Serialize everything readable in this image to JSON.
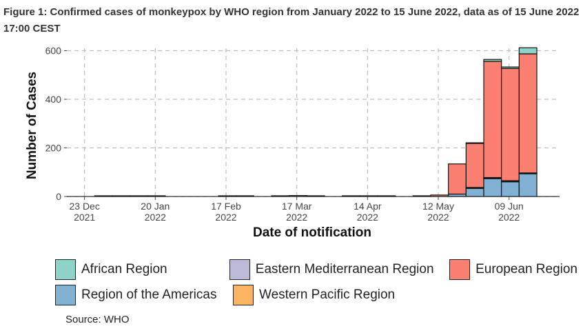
{
  "title": "Figure 1: Confirmed cases of monkeypox by WHO region from January 2022 to 15 June 2022, data as of 15 June 2022 17:00 CEST",
  "source": "Source: WHO",
  "chart_data": {
    "type": "bar",
    "stacked": true,
    "xlabel": "Date of notification",
    "ylabel": "Number of Cases",
    "ylim": [
      0,
      610
    ],
    "yticks": [
      0,
      200,
      400,
      600
    ],
    "xticks": [
      {
        "date": "2021-12-23",
        "line1": "23 Dec",
        "line2": "2021"
      },
      {
        "date": "2022-01-20",
        "line1": "20 Jan",
        "line2": "2022"
      },
      {
        "date": "2022-02-17",
        "line1": "17 Feb",
        "line2": "2022"
      },
      {
        "date": "2022-03-17",
        "line1": "17 Mar",
        "line2": "2022"
      },
      {
        "date": "2022-04-14",
        "line1": "14 Apr",
        "line2": "2022"
      },
      {
        "date": "2022-05-12",
        "line1": "12 May",
        "line2": "2022"
      },
      {
        "date": "2022-06-09",
        "line1": "09 Jun",
        "line2": "2022"
      }
    ],
    "x_range": [
      "2021-12-16",
      "2022-06-29"
    ],
    "bar_interval": "week",
    "grid": true,
    "legend_position": "bottom",
    "weeks": [
      "2021-12-27",
      "2022-01-03",
      "2022-01-10",
      "2022-01-17",
      "2022-02-14",
      "2022-02-21",
      "2022-03-07",
      "2022-03-14",
      "2022-03-21",
      "2022-04-04",
      "2022-04-11",
      "2022-04-18",
      "2022-05-02",
      "2022-05-09",
      "2022-05-16",
      "2022-05-23",
      "2022-05-30",
      "2022-06-06",
      "2022-06-13"
    ],
    "series": [
      {
        "name": "Region of the Americas",
        "color": "#80b1d3",
        "values": [
          0,
          0,
          0,
          0,
          0,
          0,
          0,
          0,
          0,
          0,
          0,
          0,
          0,
          0,
          10,
          35,
          75,
          62,
          95
        ]
      },
      {
        "name": "Western Pacific Region",
        "color": "#fdb462",
        "values": [
          0,
          0,
          0,
          0,
          0,
          0,
          0,
          0,
          0,
          0,
          0,
          0,
          0,
          0,
          0,
          1,
          1,
          1,
          1
        ]
      },
      {
        "name": "Eastern Mediterranean Region",
        "color": "#bebada",
        "values": [
          0,
          0,
          0,
          0,
          0,
          0,
          0,
          0,
          0,
          0,
          0,
          0,
          0,
          0,
          0,
          1,
          2,
          2,
          1
        ]
      },
      {
        "name": "European Region",
        "color": "#fb8072",
        "values": [
          3,
          3,
          3,
          3,
          3,
          3,
          3,
          4,
          3,
          3,
          3,
          3,
          3,
          6,
          124,
          182,
          478,
          462,
          490
        ]
      },
      {
        "name": "African Region",
        "color": "#8dd3c7",
        "values": [
          0,
          0,
          0,
          0,
          0,
          0,
          0,
          0,
          0,
          0,
          0,
          0,
          0,
          0,
          0,
          2,
          8,
          6,
          25
        ]
      }
    ]
  },
  "legend": {
    "rows": [
      [
        {
          "label": "African Region",
          "color": "#8dd3c7"
        },
        {
          "label": "Eastern Mediterranean Region",
          "color": "#bebada"
        },
        {
          "label": "European Region",
          "color": "#fb8072"
        }
      ],
      [
        {
          "label": "Region of the Americas",
          "color": "#80b1d3"
        },
        {
          "label": "Western Pacific Region",
          "color": "#fdb462"
        }
      ]
    ]
  }
}
